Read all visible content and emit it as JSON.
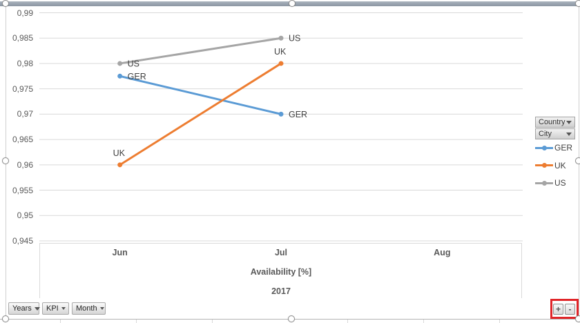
{
  "chart_data": {
    "type": "line",
    "categories": [
      "Jun",
      "Jul",
      "Aug"
    ],
    "series": [
      {
        "name": "GER",
        "color": "#5B9BD5",
        "values": [
          0.9775,
          0.97,
          null
        ],
        "label_pos": [
          "right",
          "right"
        ]
      },
      {
        "name": "UK",
        "color": "#ED7D31",
        "values": [
          0.96,
          0.98,
          null
        ],
        "label_pos": [
          "above",
          "above"
        ]
      },
      {
        "name": "US",
        "color": "#A5A5A5",
        "values": [
          0.98,
          0.985,
          null
        ],
        "label_pos": [
          "right",
          "right"
        ]
      }
    ],
    "y_axis": {
      "min": 0.945,
      "max": 0.99,
      "ticks": [
        {
          "label": "0,99",
          "value": 0.99
        },
        {
          "label": "0,985",
          "value": 0.985
        },
        {
          "label": "0,98",
          "value": 0.98
        },
        {
          "label": "0,975",
          "value": 0.975
        },
        {
          "label": "0,97",
          "value": 0.97
        },
        {
          "label": "0,965",
          "value": 0.965
        },
        {
          "label": "0,96",
          "value": 0.96
        },
        {
          "label": "0,955",
          "value": 0.955
        },
        {
          "label": "0,95",
          "value": 0.95
        },
        {
          "label": "0,945",
          "value": 0.945
        }
      ]
    },
    "title": "Availability [%]",
    "year": "2017",
    "grid": true,
    "legend_position": "right",
    "data_labels": "series name shown at each point"
  },
  "legend": {
    "field_buttons": [
      {
        "label": "Country"
      },
      {
        "label": "City"
      }
    ],
    "entries": [
      {
        "label": "GER",
        "color": "#5B9BD5"
      },
      {
        "label": "UK",
        "color": "#ED7D31"
      },
      {
        "label": "US",
        "color": "#A5A5A5"
      }
    ]
  },
  "filter_buttons": [
    {
      "label": "Years",
      "filtered": false
    },
    {
      "label": "KPI",
      "filtered": true
    },
    {
      "label": "Month",
      "filtered": true
    }
  ],
  "expand_collapse": {
    "expand_label": "+",
    "collapse_label": "-"
  },
  "colors": {
    "grid": "#D9D9D9",
    "axis_text": "#595959",
    "label_text": "#404040",
    "highlight_red": "#E02529",
    "series_blue": "#5B9BD5",
    "series_orange": "#ED7D31",
    "series_gray": "#A5A5A5"
  }
}
